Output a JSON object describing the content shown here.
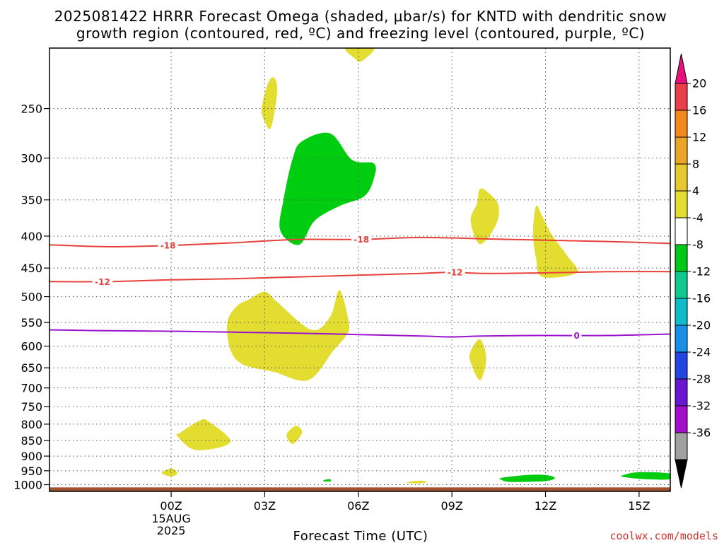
{
  "title_line1": "2025081422 HRRR Forecast Omega (shaded, μbar/s) for KNTD with dendritic snow",
  "title_line2": "growth region (contoured, red, ºC) and freezing level (contoured, purple, ºC)",
  "credit": "coolwx.com/models",
  "chart_data": {
    "type": "contour",
    "xlabel": "Forecast Time (UTC)",
    "x_range_hours": [
      -3.9,
      16
    ],
    "x_ticks": [
      {
        "h": 0,
        "label": "00Z",
        "sub1": "15AUG",
        "sub2": "2025"
      },
      {
        "h": 3,
        "label": "03Z"
      },
      {
        "h": 6,
        "label": "06Z"
      },
      {
        "h": 9,
        "label": "09Z"
      },
      {
        "h": 12,
        "label": "12Z"
      },
      {
        "h": 15,
        "label": "15Z"
      }
    ],
    "y_scale": "log",
    "ylim_hPa": [
      1025,
      200
    ],
    "y_ticks": [
      250,
      300,
      350,
      400,
      450,
      500,
      550,
      600,
      650,
      700,
      750,
      800,
      850,
      900,
      950,
      1000
    ],
    "y_tick_labels": [
      "250",
      "300",
      "350",
      "400",
      "450",
      "500",
      "550",
      "600",
      "650",
      "700",
      "750",
      "800",
      "850",
      "900",
      "950",
      "1000"
    ],
    "grid": true,
    "surface_hPa": 1010,
    "contours": [
      {
        "name": "-18",
        "color": "#e8403a",
        "labels_at": [
          -0.1,
          6.1
        ],
        "points": [
          [
            -3.9,
            413
          ],
          [
            -2,
            416
          ],
          [
            0,
            414
          ],
          [
            2,
            410
          ],
          [
            4,
            405
          ],
          [
            6,
            405
          ],
          [
            8,
            402
          ],
          [
            10,
            404
          ],
          [
            12,
            406
          ],
          [
            14,
            408
          ],
          [
            16,
            411
          ]
        ]
      },
      {
        "name": "-12",
        "color": "#e8403a",
        "labels_at": [
          -2.2,
          9.1
        ],
        "points": [
          [
            -3.9,
            473
          ],
          [
            -2,
            473
          ],
          [
            0,
            470
          ],
          [
            2,
            468
          ],
          [
            4,
            465
          ],
          [
            6,
            462
          ],
          [
            8,
            459
          ],
          [
            9,
            457
          ],
          [
            10,
            459
          ],
          [
            12,
            458
          ],
          [
            14,
            456
          ],
          [
            16,
            456
          ]
        ]
      },
      {
        "name": "0",
        "color": "#9a12cc",
        "labels_at": [
          13.0
        ],
        "points": [
          [
            -3.9,
            565
          ],
          [
            -2,
            567
          ],
          [
            0,
            568
          ],
          [
            2,
            570
          ],
          [
            4,
            572
          ],
          [
            6,
            575
          ],
          [
            8,
            578
          ],
          [
            9,
            580
          ],
          [
            10,
            578
          ],
          [
            12,
            577
          ],
          [
            14,
            577
          ],
          [
            16,
            574
          ]
        ]
      }
    ],
    "shaded_regions": [
      {
        "value_range": "4 to 8",
        "color": "#e3dc31",
        "points": [
          [
            5.6,
            200
          ],
          [
            6.5,
            200
          ],
          [
            6.1,
            210
          ],
          [
            5.9,
            208
          ]
        ]
      },
      {
        "value_range": "4 to 8",
        "color": "#e3dc31",
        "points": [
          [
            2.9,
            250
          ],
          [
            3.1,
            228
          ],
          [
            3.3,
            223
          ],
          [
            3.4,
            235
          ],
          [
            3.2,
            268
          ],
          [
            3.0,
            262
          ]
        ]
      },
      {
        "value_range": "-8 to -4",
        "color": "#00cc10",
        "points": [
          [
            4.2,
            282
          ],
          [
            5.1,
            274
          ],
          [
            5.8,
            302
          ],
          [
            6.5,
            306
          ],
          [
            6.5,
            323
          ],
          [
            6.2,
            345
          ],
          [
            5.4,
            358
          ],
          [
            4.6,
            378
          ],
          [
            4.1,
            413
          ],
          [
            3.5,
            392
          ],
          [
            3.6,
            350
          ],
          [
            3.9,
            300
          ]
        ]
      },
      {
        "value_range": "4 to 8",
        "color": "#e3dc31",
        "points": [
          [
            9.9,
            336
          ],
          [
            10.2,
            342
          ],
          [
            10.5,
            358
          ],
          [
            10.4,
            385
          ],
          [
            9.9,
            412
          ],
          [
            9.6,
            378
          ],
          [
            9.8,
            355
          ]
        ]
      },
      {
        "value_range": "4 to 8",
        "color": "#e3dc31",
        "points": [
          [
            11.7,
            358
          ],
          [
            11.9,
            372
          ],
          [
            12.2,
            398
          ],
          [
            12.7,
            430
          ],
          [
            13,
            458
          ],
          [
            11.9,
            465
          ],
          [
            11.7,
            435
          ],
          [
            11.6,
            395
          ]
        ]
      },
      {
        "value_range": "4 to 8",
        "color": "#e3dc31",
        "points": [
          [
            1.8,
            550
          ],
          [
            2.1,
            518
          ],
          [
            2.5,
            505
          ],
          [
            3.0,
            491
          ],
          [
            3.4,
            510
          ],
          [
            4.5,
            565
          ],
          [
            5.1,
            538
          ],
          [
            5.4,
            488
          ],
          [
            5.7,
            553
          ],
          [
            5.6,
            578
          ],
          [
            5.2,
            610
          ],
          [
            4.4,
            680
          ],
          [
            3.3,
            660
          ],
          [
            2.3,
            642
          ],
          [
            1.9,
            608
          ]
        ]
      },
      {
        "value_range": "4 to 8",
        "color": "#e3dc31",
        "points": [
          [
            9.6,
            612
          ],
          [
            9.9,
            585
          ],
          [
            10.1,
            628
          ],
          [
            9.9,
            680
          ],
          [
            9.6,
            637
          ]
        ]
      },
      {
        "value_range": "4 to 8",
        "color": "#e3dc31",
        "points": [
          [
            0.3,
            825
          ],
          [
            0.9,
            790
          ],
          [
            1.2,
            792
          ],
          [
            1.9,
            855
          ],
          [
            0.8,
            880
          ],
          [
            0.2,
            836
          ]
        ]
      },
      {
        "value_range": "4 to 8",
        "color": "#e3dc31",
        "points": [
          [
            3.7,
            832
          ],
          [
            4.0,
            805
          ],
          [
            4.2,
            825
          ],
          [
            3.9,
            860
          ]
        ]
      },
      {
        "value_range": "4 to 8",
        "color": "#e3dc31",
        "points": [
          [
            -0.3,
            958
          ],
          [
            0,
            942
          ],
          [
            0.2,
            958
          ],
          [
            0,
            970
          ]
        ]
      },
      {
        "value_range": "-8 to -4",
        "color": "#00cc10",
        "points": [
          [
            4.9,
            983
          ],
          [
            5.1,
            980
          ],
          [
            5.1,
            988
          ],
          [
            4.9,
            988
          ]
        ]
      },
      {
        "value_range": "4 to 8",
        "color": "#e3dc31",
        "points": [
          [
            7.6,
            990
          ],
          [
            8.0,
            985
          ],
          [
            8.2,
            990
          ],
          [
            8.0,
            995
          ],
          [
            7.6,
            994
          ]
        ]
      },
      {
        "value_range": "-8 to -4",
        "color": "#00cc10",
        "points": [
          [
            10.6,
            975
          ],
          [
            11.4,
            965
          ],
          [
            12.0,
            965
          ],
          [
            12.3,
            975
          ],
          [
            12.0,
            987
          ],
          [
            10.9,
            990
          ],
          [
            10.6,
            983
          ]
        ]
      },
      {
        "value_range": "-8 to -4",
        "color": "#00cc10",
        "points": [
          [
            14.5,
            965
          ],
          [
            15.0,
            955
          ],
          [
            16,
            960
          ],
          [
            16,
            980
          ],
          [
            15.2,
            980
          ],
          [
            14.5,
            972
          ]
        ]
      }
    ],
    "colorbar": {
      "levels": [
        "20",
        "16",
        "12",
        "8",
        "4",
        "-4",
        "-8",
        "-12",
        "-16",
        "-20",
        "-24",
        "-28",
        "-32",
        "-36"
      ],
      "colors_top_to_bottom": [
        "#e8404a",
        "#f08a1e",
        "#e9a628",
        "#e8c830",
        "#e3dc31",
        "#ffffff",
        "#00c818",
        "#10c890",
        "#10bcc8",
        "#1890e8",
        "#2446e0",
        "#6a18d0",
        "#a010c8",
        "#a0a0a0"
      ],
      "over_color": "#e8107a",
      "under_color": "#000000"
    }
  }
}
